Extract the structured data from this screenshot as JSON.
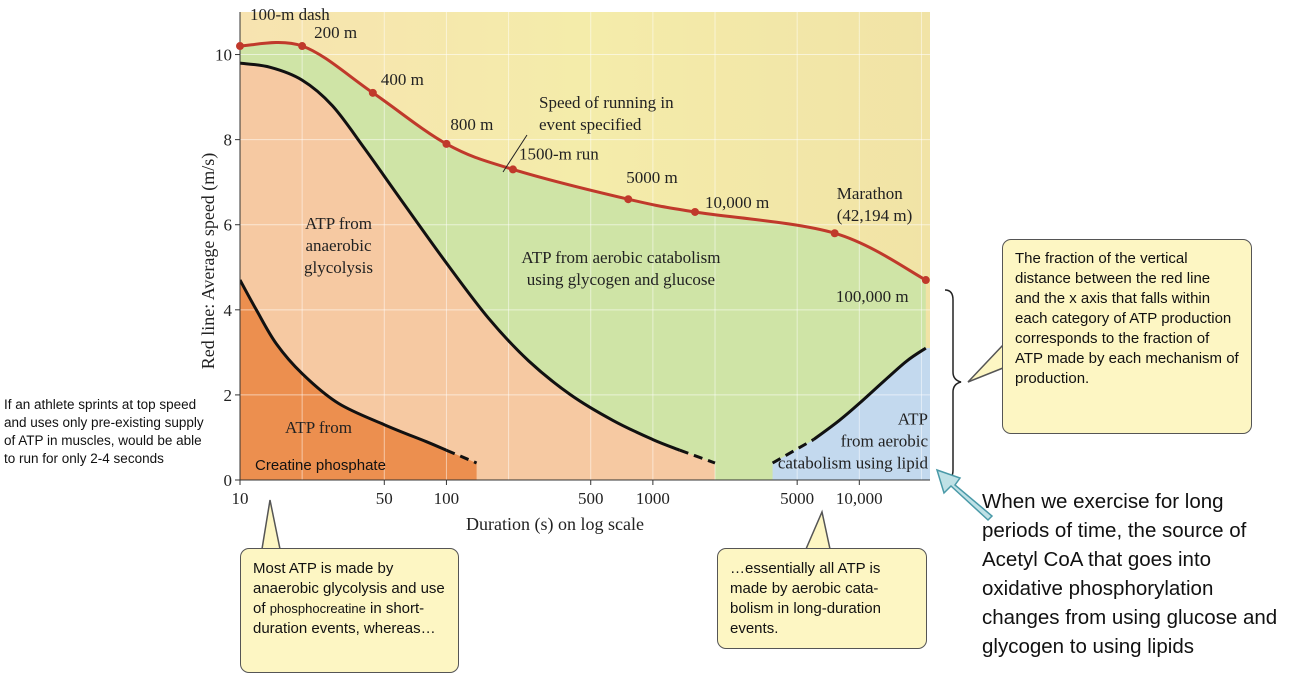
{
  "chart_data": {
    "type": "line",
    "xlabel": "Duration (s) on log scale",
    "ylabel": "Red line: Average speed (m/s)",
    "x_scale": "log",
    "xlim": [
      10,
      22000
    ],
    "ylim": [
      0,
      11
    ],
    "x_ticks": [
      10,
      50,
      100,
      500,
      1000,
      5000,
      10000
    ],
    "x_tick_labels": [
      "10",
      "50",
      "100",
      "500",
      "1000",
      "5000",
      "10,000"
    ],
    "y_ticks": [
      0,
      2,
      4,
      6,
      8,
      10
    ],
    "grid": true,
    "series": [
      {
        "name": "Speed of running in event specified",
        "color": "#c0392b",
        "points": [
          {
            "label": "100-m dash",
            "x": 10,
            "y": 10.2
          },
          {
            "label": "200 m",
            "x": 20,
            "y": 10.2
          },
          {
            "label": "400 m",
            "x": 44,
            "y": 9.1
          },
          {
            "label": "800 m",
            "x": 100,
            "y": 7.9
          },
          {
            "label": "1500-m run",
            "x": 210,
            "y": 7.3
          },
          {
            "label": "5000 m",
            "x": 760,
            "y": 6.6
          },
          {
            "label": "10,000 m",
            "x": 1600,
            "y": 6.3
          },
          {
            "label": "Marathon\n(42,194 m)",
            "x": 7600,
            "y": 5.8
          },
          {
            "label": "100,000 m",
            "x": 21000,
            "y": 4.7
          }
        ]
      }
    ],
    "boundaries": {
      "glycolysis_aerobic": [
        [
          10,
          9.8
        ],
        [
          14,
          9.7
        ],
        [
          20,
          9.4
        ],
        [
          28,
          8.8
        ],
        [
          40,
          7.8
        ],
        [
          60,
          6.6
        ],
        [
          100,
          5.1
        ],
        [
          160,
          3.8
        ],
        [
          250,
          2.8
        ],
        [
          400,
          2.0
        ],
        [
          640,
          1.4
        ],
        [
          1000,
          0.95
        ],
        [
          1350,
          0.7
        ]
      ],
      "glycolysis_aerobic_dashed": [
        [
          1350,
          0.7
        ],
        [
          2000,
          0.4
        ]
      ],
      "creatine_glycolysis": [
        [
          10,
          4.7
        ],
        [
          12,
          4.0
        ],
        [
          15,
          3.2
        ],
        [
          20,
          2.5
        ],
        [
          30,
          1.8
        ],
        [
          50,
          1.3
        ],
        [
          80,
          0.9
        ],
        [
          100,
          0.7
        ]
      ],
      "creatine_glycolysis_dashed": [
        [
          100,
          0.7
        ],
        [
          140,
          0.4
        ]
      ],
      "lipid_aerobic": [
        [
          6000,
          0.95
        ],
        [
          8000,
          1.4
        ],
        [
          10000,
          1.8
        ],
        [
          13000,
          2.3
        ],
        [
          17000,
          2.8
        ],
        [
          21000,
          3.1
        ]
      ],
      "lipid_aerobic_dashed": [
        [
          3800,
          0.4
        ],
        [
          6000,
          0.95
        ]
      ]
    },
    "region_labels": [
      {
        "text": [
          "ATP from",
          "anaerobic",
          "glycolysis"
        ],
        "x": 30,
        "y": 5.9
      },
      {
        "text": [
          "ATP from aerobic catabolism",
          "using glycogen and glucose"
        ],
        "x": 700,
        "y": 5.1
      },
      {
        "text": [
          "ATP from"
        ],
        "x": 24,
        "y": 1.1
      },
      {
        "text": [
          "ATP",
          "from aerobic",
          "catabolism using lipid"
        ],
        "x": 9500,
        "y": 1.3
      }
    ],
    "speed_label": [
      "Speed of running in",
      "event specified"
    ]
  },
  "annotations": {
    "creatine_label": "Creatine phosphate",
    "side_note": "If an athlete sprints at top speed and uses only pre-existing supply of ATP in muscles, would be able to run for only 2-4 seconds",
    "callout_left_part1": "Most ATP is made by anaerobic glycolysis and use of ",
    "callout_left_small": "phosphocreatine",
    "callout_left_part2": " in short-duration events, whereas…",
    "callout_mid": "…essentially all ATP is made by aerobic cata-bolism in long-duration events.",
    "callout_right": "The fraction of the vertical distance between the red line and the x axis that falls within each category of ATP production corresponds to the fraction of ATP made by each mechanism of production.",
    "big_note": "When we exercise for long periods of time, the source of Acetyl CoA that goes into oxidative phosphorylation changes from using glucose and glycogen to using lipids"
  },
  "colors": {
    "red_line": "#c0392b",
    "glycolysis_region": "#f6c9a2",
    "aerobic_glucose_region": "#cfe4a6",
    "creatine_region": "#ec8f4f",
    "lipid_region": "#c3d9ee",
    "top_background": "#f4e6a6",
    "callout_bg": "#fdf6c3"
  }
}
